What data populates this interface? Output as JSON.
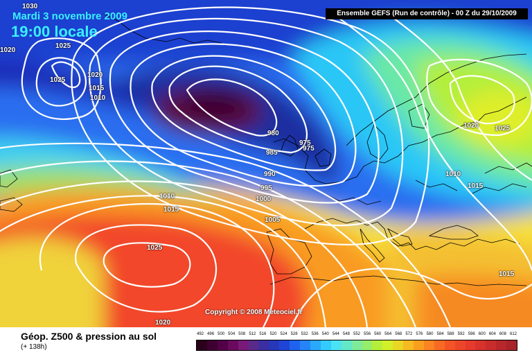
{
  "header": {
    "date": "Mardi 3 novembre 2009",
    "local_time": "19:00 locale",
    "run_info": "Ensemble GEFS (Run de contrôle)  - 00 Z du 29/10/2009"
  },
  "map": {
    "copyright": "Copyright © 2008 Meteociel.fr",
    "isobar_labels": [
      "1030",
      "1020",
      "1025",
      "1025",
      "1020",
      "1015",
      "1010",
      "980",
      "985",
      "975",
      "975",
      "990",
      "995",
      "1000",
      "1005",
      "1010",
      "1015",
      "1025",
      "1020",
      "1020",
      "1025",
      "1010",
      "1015",
      "1015"
    ]
  },
  "footer": {
    "product_title": "Géop. Z500 & pression au sol",
    "lead_time": "(+ 138h)"
  },
  "legend": {
    "labels": [
      "492",
      "496",
      "500",
      "504",
      "508",
      "512",
      "516",
      "520",
      "524",
      "528",
      "532",
      "536",
      "540",
      "544",
      "548",
      "552",
      "556",
      "560",
      "564",
      "568",
      "572",
      "576",
      "580",
      "584",
      "588",
      "592",
      "596",
      "600",
      "604",
      "608",
      "612"
    ],
    "colors": [
      "#2a001a",
      "#3d0030",
      "#520047",
      "#6a0a5e",
      "#7a1a78",
      "#5a2a8a",
      "#3b2ea0",
      "#2637b8",
      "#1f45d6",
      "#1f62ee",
      "#2584f7",
      "#2aa8fb",
      "#33cbff",
      "#4be3f3",
      "#63e8c7",
      "#7eeb9a",
      "#96ed6b",
      "#b5ef3a",
      "#d3ef2a",
      "#ead625",
      "#f6bb20",
      "#f99f1f",
      "#fa8322",
      "#f86a24",
      "#f35426",
      "#ec4629",
      "#e53a2c",
      "#d8322c",
      "#c92c2c",
      "#b8272b",
      "#a8232a"
    ]
  }
}
